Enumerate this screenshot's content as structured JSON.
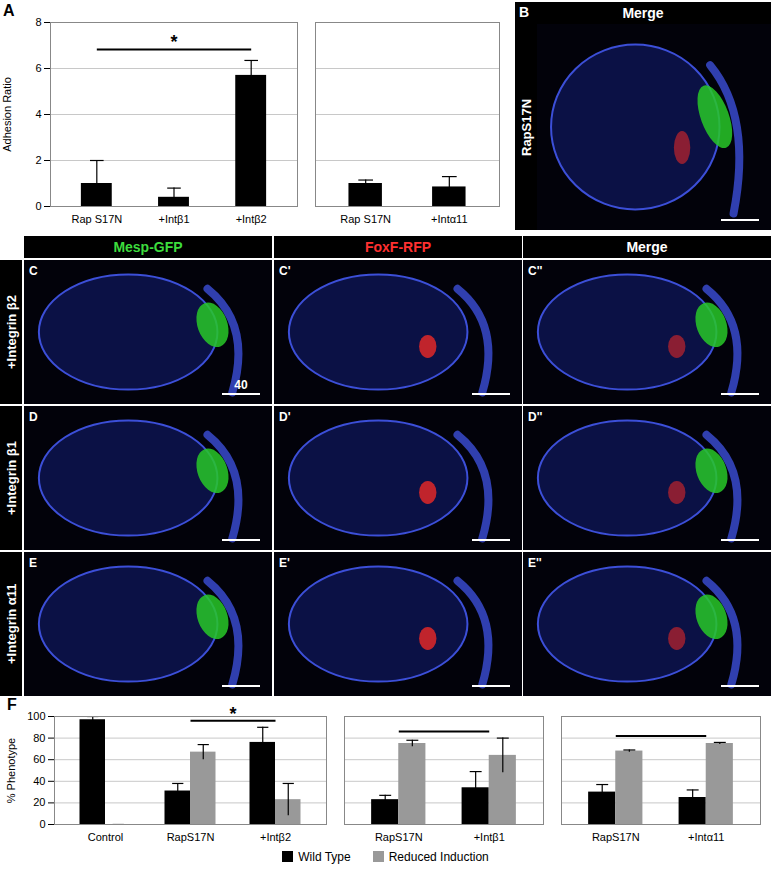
{
  "chart_data": [
    {
      "type": "bar",
      "title": "A",
      "y_label": "Adhesion Ratio",
      "categories": [
        "Rap S17N",
        "+Intβ1",
        "+Intβ2"
      ],
      "values": [
        1.0,
        0.4,
        5.7
      ],
      "errors": [
        1.0,
        0.4,
        0.65
      ],
      "color": "#000000",
      "ylim": [
        0,
        8
      ],
      "yticks": [
        0,
        2,
        4,
        6,
        8
      ],
      "grid": true,
      "significance": [
        {
          "from": "Rap S17N",
          "to": "+Intβ2",
          "label": "*"
        }
      ]
    },
    {
      "type": "bar",
      "categories": [
        "Rap S17N",
        "+Intα11"
      ],
      "values": [
        1.0,
        0.85
      ],
      "errors": [
        0.15,
        0.45
      ],
      "color": "#000000",
      "ylim": [
        0,
        8
      ],
      "yticks": [
        0,
        2,
        4,
        6,
        8
      ],
      "grid": true,
      "tick_labels": "x"
    },
    {
      "type": "bar",
      "title": "F",
      "y_label": "% Phenotype",
      "categories": [
        "Control",
        "RapS17N",
        "+Intβ2"
      ],
      "series": [
        {
          "name": "Wild Type",
          "color": "#000000",
          "values": [
            97,
            31,
            76
          ],
          "errors": [
            3,
            7,
            14
          ]
        },
        {
          "name": "Reduced Induction",
          "color": "#999999",
          "values": [
            0,
            67,
            23
          ],
          "errors": [
            0,
            7,
            15
          ]
        }
      ],
      "ylim": [
        0,
        100
      ],
      "yticks": [
        0,
        20,
        40,
        60,
        80,
        100
      ],
      "grid": true,
      "legend": "bottom",
      "significance": [
        {
          "from": "RapS17N",
          "to": "+Intβ2",
          "label": "*"
        }
      ]
    },
    {
      "type": "bar",
      "categories": [
        "RapS17N",
        "+Intβ1"
      ],
      "series": [
        {
          "name": "Wild Type",
          "color": "#000000",
          "values": [
            23,
            34
          ],
          "errors": [
            4,
            15
          ]
        },
        {
          "name": "Reduced Induction",
          "color": "#999999",
          "values": [
            75,
            64
          ],
          "errors": [
            3,
            16
          ]
        }
      ],
      "ylim": [
        0,
        100
      ],
      "yticks": [
        0,
        20,
        40,
        60,
        80,
        100
      ],
      "grid": true,
      "tick_labels": "x",
      "significance": [
        {
          "from": "RapS17N",
          "to": "+Intβ1"
        }
      ]
    },
    {
      "type": "bar",
      "categories": [
        "RapS17N",
        "+Intα11"
      ],
      "series": [
        {
          "name": "Wild Type",
          "color": "#000000",
          "values": [
            30,
            25
          ],
          "errors": [
            7,
            7
          ]
        },
        {
          "name": "Reduced Induction",
          "color": "#999999",
          "values": [
            68,
            75
          ],
          "errors": [
            1,
            1
          ]
        }
      ],
      "ylim": [
        0,
        100
      ],
      "yticks": [
        0,
        20,
        40,
        60,
        80,
        100
      ],
      "grid": true,
      "tick_labels": "x",
      "significance": [
        {
          "from": "RapS17N",
          "to": "+Intα11"
        }
      ]
    }
  ],
  "image_panels": {
    "B": {
      "letter": "B",
      "header": "Merge",
      "row_label": "RapS17N"
    },
    "grid": {
      "headers": [
        {
          "text": "Mesp-GFP",
          "color": "#3ddc3d"
        },
        {
          "text": "FoxF-RFP",
          "color": "#ff3030"
        },
        {
          "text": "Merge",
          "color": "#ffffff"
        }
      ],
      "rows": [
        {
          "label": "+Integrin β2",
          "panels": [
            "C",
            "C'",
            "C''"
          ],
          "scale_bar": "40"
        },
        {
          "label": "+Integrin β1",
          "panels": [
            "D",
            "D'",
            "D''"
          ]
        },
        {
          "label": "+Integrin α11",
          "panels": [
            "E",
            "E'",
            "E''"
          ]
        }
      ]
    }
  }
}
